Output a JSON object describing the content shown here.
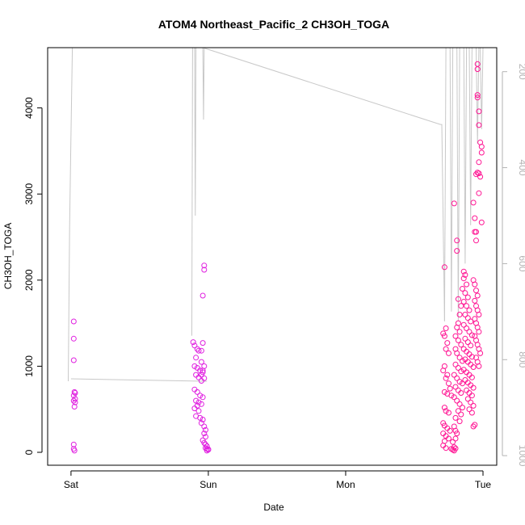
{
  "chart_data": {
    "type": "scatter",
    "title": "ATOM4 Northeast_Pacific_2 CH3OH_TOGA",
    "xlabel": "Date",
    "ylabel": "CH3OH_TOGA",
    "x_tick_labels": [
      "Sat",
      "Sun",
      "Mon",
      "Tue"
    ],
    "x_tick_days": [
      0,
      1,
      2,
      3
    ],
    "xlim_days": [
      -0.17,
      3.1
    ],
    "ylim": [
      -150,
      4700
    ],
    "y_ticks": [
      0,
      1000,
      2000,
      3000,
      4000
    ],
    "right_axis": {
      "label": "",
      "ticks": [
        200,
        400,
        600,
        800,
        1000
      ],
      "range_reversed": [
        1020,
        150
      ],
      "color": "#bebebe"
    },
    "marker": "open-circle",
    "colors": {
      "points_primary": "#e020e0",
      "points_secondary": "#ff1493",
      "altitude_line": "#c8c8c8"
    },
    "series": [
      {
        "values_day_y": [
          [
            0.02,
            1520
          ],
          [
            0.02,
            1320
          ],
          [
            0.02,
            1070
          ],
          [
            0.025,
            700
          ],
          [
            0.03,
            690
          ],
          [
            0.02,
            660
          ],
          [
            0.03,
            620
          ],
          [
            0.02,
            600
          ],
          [
            0.03,
            580
          ],
          [
            0.025,
            530
          ],
          [
            0.02,
            90
          ],
          [
            0.02,
            40
          ],
          [
            0.025,
            20
          ],
          [
            0.89,
            1280
          ],
          [
            0.9,
            1240
          ],
          [
            0.92,
            1200
          ],
          [
            0.93,
            1180
          ],
          [
            0.91,
            1100
          ],
          [
            0.95,
            1050
          ],
          [
            0.9,
            1000
          ],
          [
            0.92,
            980
          ],
          [
            0.94,
            950
          ],
          [
            0.96,
            930
          ],
          [
            0.91,
            900
          ],
          [
            0.93,
            870
          ],
          [
            0.95,
            830
          ],
          [
            0.9,
            730
          ],
          [
            0.92,
            700
          ],
          [
            0.94,
            660
          ],
          [
            0.96,
            640
          ],
          [
            0.91,
            600
          ],
          [
            0.93,
            580
          ],
          [
            0.95,
            560
          ],
          [
            0.92,
            540
          ],
          [
            0.9,
            510
          ],
          [
            0.93,
            480
          ],
          [
            0.91,
            420
          ],
          [
            0.94,
            400
          ],
          [
            0.96,
            380
          ],
          [
            0.95,
            340
          ],
          [
            0.97,
            300
          ],
          [
            0.98,
            260
          ],
          [
            0.97,
            220
          ],
          [
            0.98,
            180
          ],
          [
            0.96,
            140
          ],
          [
            0.97,
            110
          ],
          [
            0.98,
            90
          ],
          [
            0.99,
            70
          ],
          [
            0.98,
            50
          ],
          [
            0.99,
            40
          ],
          [
            1.0,
            30
          ],
          [
            0.99,
            20
          ],
          [
            1.0,
            35
          ],
          [
            0.97,
            2170
          ],
          [
            0.97,
            2120
          ],
          [
            0.96,
            1820
          ],
          [
            0.96,
            1270
          ],
          [
            0.95,
            1180
          ],
          [
            0.97,
            1000
          ],
          [
            0.96,
            950
          ],
          [
            0.95,
            900
          ],
          [
            0.97,
            860
          ]
        ]
      },
      {
        "values_day_y": [
          [
            2.72,
            2150
          ],
          [
            2.73,
            1440
          ],
          [
            2.71,
            1380
          ],
          [
            2.72,
            1350
          ],
          [
            2.74,
            1270
          ],
          [
            2.73,
            1200
          ],
          [
            2.75,
            1150
          ],
          [
            2.72,
            1000
          ],
          [
            2.71,
            950
          ],
          [
            2.74,
            900
          ],
          [
            2.73,
            860
          ],
          [
            2.75,
            800
          ],
          [
            2.76,
            740
          ],
          [
            2.72,
            700
          ],
          [
            2.74,
            680
          ],
          [
            2.77,
            660
          ],
          [
            2.72,
            520
          ],
          [
            2.73,
            480
          ],
          [
            2.75,
            460
          ],
          [
            2.71,
            340
          ],
          [
            2.72,
            310
          ],
          [
            2.74,
            280
          ],
          [
            2.76,
            250
          ],
          [
            2.71,
            220
          ],
          [
            2.73,
            190
          ],
          [
            2.75,
            160
          ],
          [
            2.72,
            130
          ],
          [
            2.71,
            80
          ],
          [
            2.73,
            50
          ],
          [
            2.77,
            40
          ],
          [
            2.78,
            30
          ],
          [
            2.79,
            20
          ],
          [
            2.8,
            45
          ],
          [
            2.79,
            60
          ],
          [
            2.78,
            120
          ],
          [
            2.8,
            160
          ],
          [
            2.81,
            220
          ],
          [
            2.8,
            250
          ],
          [
            2.79,
            300
          ],
          [
            2.79,
            2890
          ],
          [
            2.81,
            2460
          ],
          [
            2.81,
            2340
          ],
          [
            2.82,
            1780
          ],
          [
            2.84,
            1700
          ],
          [
            2.83,
            1600
          ],
          [
            2.82,
            1500
          ],
          [
            2.81,
            1450
          ],
          [
            2.83,
            1400
          ],
          [
            2.8,
            1350
          ],
          [
            2.82,
            1300
          ],
          [
            2.84,
            1250
          ],
          [
            2.8,
            1200
          ],
          [
            2.81,
            1150
          ],
          [
            2.83,
            1100
          ],
          [
            2.85,
            1060
          ],
          [
            2.8,
            1020
          ],
          [
            2.82,
            980
          ],
          [
            2.84,
            940
          ],
          [
            2.79,
            900
          ],
          [
            2.81,
            860
          ],
          [
            2.83,
            820
          ],
          [
            2.85,
            800
          ],
          [
            2.8,
            760
          ],
          [
            2.82,
            720
          ],
          [
            2.84,
            690
          ],
          [
            2.79,
            640
          ],
          [
            2.81,
            600
          ],
          [
            2.83,
            560
          ],
          [
            2.85,
            520
          ],
          [
            2.82,
            480
          ],
          [
            2.84,
            440
          ],
          [
            2.8,
            400
          ],
          [
            2.83,
            360
          ],
          [
            2.86,
            2100
          ],
          [
            2.87,
            2060
          ],
          [
            2.86,
            2020
          ],
          [
            2.88,
            1950
          ],
          [
            2.85,
            1900
          ],
          [
            2.87,
            1850
          ],
          [
            2.89,
            1800
          ],
          [
            2.86,
            1750
          ],
          [
            2.88,
            1700
          ],
          [
            2.9,
            1650
          ],
          [
            2.87,
            1600
          ],
          [
            2.89,
            1560
          ],
          [
            2.91,
            1520
          ],
          [
            2.86,
            1480
          ],
          [
            2.88,
            1440
          ],
          [
            2.9,
            1400
          ],
          [
            2.92,
            1360
          ],
          [
            2.87,
            1320
          ],
          [
            2.89,
            1280
          ],
          [
            2.91,
            1240
          ],
          [
            2.86,
            1200
          ],
          [
            2.88,
            1170
          ],
          [
            2.9,
            1140
          ],
          [
            2.92,
            1110
          ],
          [
            2.87,
            1080
          ],
          [
            2.89,
            1050
          ],
          [
            2.91,
            1020
          ],
          [
            2.93,
            990
          ],
          [
            2.86,
            960
          ],
          [
            2.88,
            930
          ],
          [
            2.9,
            900
          ],
          [
            2.92,
            870
          ],
          [
            2.87,
            840
          ],
          [
            2.89,
            810
          ],
          [
            2.91,
            780
          ],
          [
            2.93,
            750
          ],
          [
            2.88,
            720
          ],
          [
            2.9,
            690
          ],
          [
            2.92,
            660
          ],
          [
            2.89,
            620
          ],
          [
            2.91,
            580
          ],
          [
            2.93,
            540
          ],
          [
            2.9,
            500
          ],
          [
            2.92,
            460
          ],
          [
            2.93,
            2900
          ],
          [
            2.94,
            2720
          ],
          [
            2.95,
            2560
          ],
          [
            2.94,
            2560
          ],
          [
            2.95,
            2460
          ],
          [
            2.93,
            2000
          ],
          [
            2.94,
            1950
          ],
          [
            2.95,
            1880
          ],
          [
            2.96,
            1820
          ],
          [
            2.94,
            1760
          ],
          [
            2.95,
            1700
          ],
          [
            2.96,
            1650
          ],
          [
            2.97,
            1600
          ],
          [
            2.94,
            1550
          ],
          [
            2.95,
            1500
          ],
          [
            2.96,
            1450
          ],
          [
            2.97,
            1400
          ],
          [
            2.94,
            1350
          ],
          [
            2.95,
            1300
          ],
          [
            2.96,
            1250
          ],
          [
            2.97,
            1200
          ],
          [
            2.98,
            1150
          ],
          [
            2.95,
            1100
          ],
          [
            2.96,
            1050
          ],
          [
            2.97,
            1000
          ],
          [
            2.94,
            320
          ],
          [
            2.93,
            300
          ],
          [
            2.96,
            4510
          ],
          [
            2.96,
            4450
          ],
          [
            2.96,
            4150
          ],
          [
            2.96,
            4120
          ],
          [
            2.97,
            3960
          ],
          [
            2.97,
            3800
          ],
          [
            2.98,
            3600
          ],
          [
            2.99,
            3550
          ],
          [
            2.99,
            3480
          ],
          [
            2.97,
            3370
          ],
          [
            2.96,
            3250
          ],
          [
            2.97,
            3240
          ],
          [
            2.95,
            3230
          ],
          [
            2.98,
            3200
          ],
          [
            2.97,
            3010
          ],
          [
            2.99,
            2670
          ]
        ]
      }
    ],
    "altitude_line_desc_days": [
      -0.02,
      0.0,
      0.03,
      0.88,
      0.92,
      0.97,
      1.0,
      2.69,
      2.72,
      3.0
    ]
  }
}
